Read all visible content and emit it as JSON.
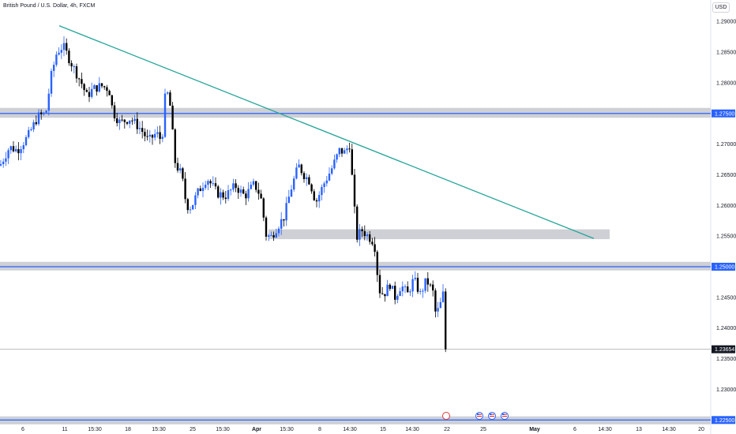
{
  "header": {
    "title": "British Pound / U.S. Dollar, 4h, FXCM",
    "currency": "USD"
  },
  "colors": {
    "bull": "#2962ff",
    "bear": "#000000",
    "trendline": "#26a69a",
    "zone_fill": "#c9cbd0",
    "level_line": "#2962ff",
    "price_tag_bg": "#2962ff",
    "last_price_tag_bg": "#131722"
  },
  "chart_data": {
    "type": "candlestick",
    "symbol": "GBPUSD",
    "timeframe": "4h",
    "y_ticks": [
      "1.29000",
      "1.28500",
      "1.28000",
      "1.27000",
      "1.26500",
      "1.26000",
      "1.25500",
      "1.24500",
      "1.24000",
      "1.23500",
      "1.23000"
    ],
    "ylim": [
      1.2242,
      1.2935
    ],
    "x_ticks": [
      "6",
      "11",
      "15:30",
      "18",
      "15:30",
      "25",
      "15:30",
      "Apr",
      "15:30",
      "8",
      "14:30",
      "15",
      "14:30",
      "22",
      "25",
      "May",
      "6",
      "14:30",
      "13",
      "14:30",
      "20"
    ],
    "horizontal_levels": [
      {
        "price": 1.275,
        "label": "1.27500"
      },
      {
        "price": 1.25,
        "label": "1.25000"
      },
      {
        "price": 1.225,
        "label": "1.22500"
      }
    ],
    "last_price": {
      "price": 1.23654,
      "label": "1.23654"
    },
    "zones": [
      {
        "from_time": 0,
        "to_time": 900,
        "low": 1.2743,
        "high": 1.2759
      },
      {
        "from_time": 0,
        "to_time": 900,
        "low": 1.2494,
        "high": 1.2508
      },
      {
        "from_time": 340,
        "to_time": 772,
        "low": 1.2545,
        "high": 1.2561
      },
      {
        "from_time": 0,
        "to_time": 900,
        "low": 1.2243,
        "high": 1.2256
      }
    ],
    "trendline": {
      "from": [
        75,
        1.2893
      ],
      "to": [
        752,
        1.2546
      ]
    },
    "waypoints": [
      [
        0,
        1.2665
      ],
      [
        12,
        1.2695
      ],
      [
        22,
        1.269
      ],
      [
        35,
        1.2712
      ],
      [
        48,
        1.2745
      ],
      [
        58,
        1.275
      ],
      [
        65,
        1.2812
      ],
      [
        72,
        1.285
      ],
      [
        80,
        1.286
      ],
      [
        88,
        1.2838
      ],
      [
        95,
        1.282
      ],
      [
        103,
        1.28
      ],
      [
        110,
        1.2778
      ],
      [
        118,
        1.279
      ],
      [
        128,
        1.2795
      ],
      [
        138,
        1.279
      ],
      [
        143,
        1.2752
      ],
      [
        152,
        1.2735
      ],
      [
        165,
        1.2742
      ],
      [
        178,
        1.2725
      ],
      [
        188,
        1.2705
      ],
      [
        198,
        1.2718
      ],
      [
        205,
        1.2705
      ],
      [
        210,
        1.2792
      ],
      [
        215,
        1.2768
      ],
      [
        222,
        1.2668
      ],
      [
        230,
        1.265
      ],
      [
        236,
        1.26
      ],
      [
        242,
        1.2597
      ],
      [
        250,
        1.262
      ],
      [
        262,
        1.2645
      ],
      [
        275,
        1.262
      ],
      [
        285,
        1.2615
      ],
      [
        298,
        1.2632
      ],
      [
        310,
        1.2615
      ],
      [
        322,
        1.2635
      ],
      [
        330,
        1.2615
      ],
      [
        337,
        1.2552
      ],
      [
        343,
        1.2548
      ],
      [
        350,
        1.2563
      ],
      [
        360,
        1.2582
      ],
      [
        368,
        1.2625
      ],
      [
        378,
        1.2665
      ],
      [
        385,
        1.265
      ],
      [
        392,
        1.264
      ],
      [
        400,
        1.2605
      ],
      [
        410,
        1.2635
      ],
      [
        420,
        1.266
      ],
      [
        430,
        1.269
      ],
      [
        436,
        1.2686
      ],
      [
        443,
        1.27
      ],
      [
        448,
        1.2605
      ],
      [
        452,
        1.2548
      ],
      [
        458,
        1.256
      ],
      [
        466,
        1.255
      ],
      [
        474,
        1.254
      ],
      [
        480,
        1.2462
      ],
      [
        486,
        1.2455
      ],
      [
        494,
        1.2472
      ],
      [
        500,
        1.245
      ],
      [
        508,
        1.247
      ],
      [
        516,
        1.2455
      ],
      [
        524,
        1.248
      ],
      [
        532,
        1.2455
      ],
      [
        540,
        1.2478
      ],
      [
        548,
        1.246
      ],
      [
        552,
        1.242
      ],
      [
        558,
        1.244
      ],
      [
        562,
        1.246
      ],
      [
        566,
        1.2365
      ]
    ]
  }
}
